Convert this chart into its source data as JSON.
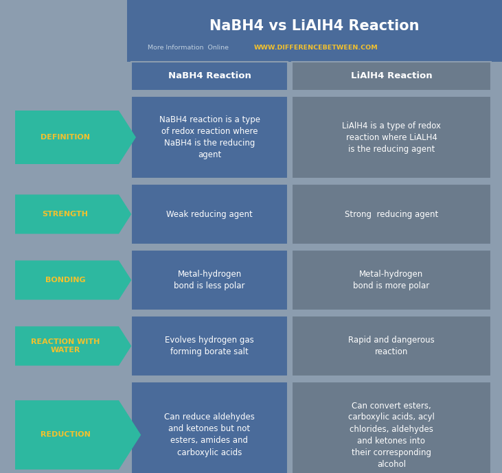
{
  "title": "NaBH4 vs LiAlH4 Reaction",
  "subtitle_plain": "More Information  Online",
  "subtitle_url": "WWW.DIFFERENCEBETWEEN.COM",
  "header_col1": "NaBH4 Reaction",
  "header_col2": "LiAlH4 Reaction",
  "bg_color": "#8c9daf",
  "title_bg_color": "#4a6b9a",
  "arrow_color": "#2db8a0",
  "col1_color": "#4a6b9a",
  "col2_color": "#6b7b8c",
  "label_text_color": "#f2c12e",
  "col_text_color": "#ffffff",
  "title_text_color": "#ffffff",
  "subtitle_plain_color": "#c0d0e0",
  "subtitle_url_color": "#f2c12e",
  "header_text_color": "#ffffff",
  "rows": [
    {
      "label": "DEFINITION",
      "col1": "NaBH4 reaction is a type\nof redox reaction where\nNaBH4 is the reducing\nagent",
      "col2": "LiAlH4 is a type of redox\nreaction where LiALH4\nis the reducing agent"
    },
    {
      "label": "STRENGTH",
      "col1": "Weak reducing agent",
      "col2": "Strong  reducing agent"
    },
    {
      "label": "BONDING",
      "col1": "Metal-hydrogen\nbond is less polar",
      "col2": "Metal-hydrogen\nbond is more polar"
    },
    {
      "label": "REACTION WITH\nWATER",
      "col1": "Evolves hydrogen gas\nforming borate salt",
      "col2": "Rapid and dangerous\nreaction"
    },
    {
      "label": "REDUCTION",
      "col1": "Can reduce aldehydes\nand ketones but not\nesters, amides and\ncarboxylic acids",
      "col2": "Can convert esters,\ncarboxylic acids, acyl\nchlorides, aldehydes\nand ketones into\ntheir corresponding\nalcohol"
    }
  ],
  "fig_w": 7.31,
  "fig_h": 6.89,
  "dpi": 100
}
